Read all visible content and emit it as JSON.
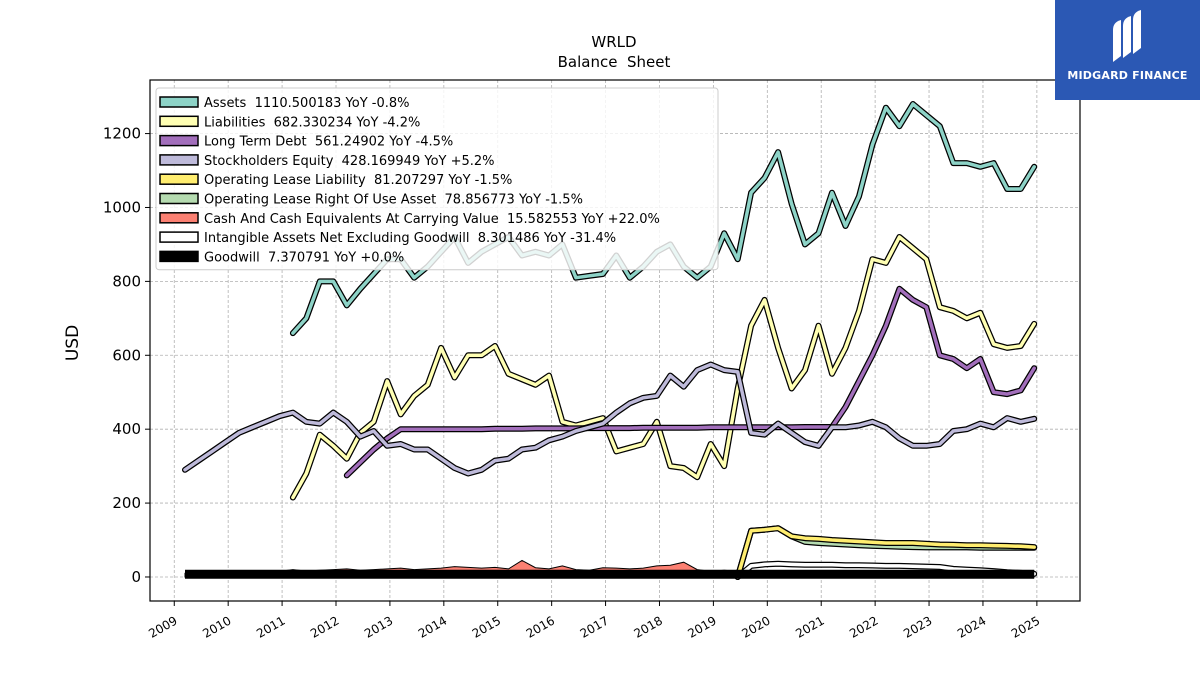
{
  "brand": {
    "name": "MIDGARD FINANCE",
    "logo_icon": "midgard-logo-icon",
    "color": "#2b58b4"
  },
  "chart_data": {
    "type": "line",
    "title": "WRLD",
    "subtitle": "Balance  Sheet",
    "xlabel": "",
    "ylabel": "USD",
    "ylim": [
      -65,
      1345
    ],
    "yticks": [
      0,
      200,
      400,
      600,
      800,
      1000,
      1200
    ],
    "xlim": [
      2008.55,
      2025.8
    ],
    "xticks": [
      "2009",
      "2010",
      "2011",
      "2012",
      "2013",
      "2014",
      "2015",
      "2016",
      "2017",
      "2018",
      "2019",
      "2020",
      "2021",
      "2022",
      "2023",
      "2024",
      "2025"
    ],
    "grid": true,
    "legend_position": "top-left",
    "series": [
      {
        "name": "Assets  1110.500183 YoY -0.8%",
        "color": "#8dd3c7",
        "style": "line",
        "x": [
          2011.2,
          2011.45,
          2011.7,
          2011.95,
          2012.2,
          2012.45,
          2012.7,
          2012.95,
          2013.2,
          2013.45,
          2013.7,
          2013.95,
          2014.2,
          2014.45,
          2014.7,
          2014.95,
          2015.2,
          2015.45,
          2015.7,
          2015.95,
          2016.2,
          2016.45,
          2016.7,
          2016.95,
          2017.2,
          2017.45,
          2017.7,
          2017.95,
          2018.2,
          2018.45,
          2018.7,
          2018.95,
          2019.2,
          2019.45,
          2019.7,
          2019.95,
          2020.2,
          2020.45,
          2020.7,
          2020.95,
          2021.2,
          2021.45,
          2021.7,
          2021.95,
          2022.2,
          2022.45,
          2022.7,
          2022.95,
          2023.2,
          2023.45,
          2023.7,
          2023.95,
          2024.2,
          2024.45,
          2024.7,
          2024.95
        ],
        "values": [
          660,
          700,
          800,
          800,
          735,
          780,
          820,
          860,
          860,
          810,
          840,
          880,
          920,
          850,
          880,
          900,
          920,
          870,
          880,
          870,
          900,
          810,
          815,
          820,
          870,
          810,
          840,
          880,
          900,
          840,
          810,
          840,
          930,
          860,
          1040,
          1080,
          1150,
          1010,
          900,
          930,
          1040,
          950,
          1030,
          1170,
          1270,
          1220,
          1280,
          1250,
          1220,
          1120,
          1120,
          1110,
          1120,
          1050,
          1050,
          1110
        ]
      },
      {
        "name": "Liabilities  682.330234 YoY -4.2%",
        "color": "#ffffb3",
        "style": "line",
        "x": [
          2011.2,
          2011.45,
          2011.7,
          2011.95,
          2012.2,
          2012.45,
          2012.7,
          2012.95,
          2013.2,
          2013.45,
          2013.7,
          2013.95,
          2014.2,
          2014.45,
          2014.7,
          2014.95,
          2015.2,
          2015.45,
          2015.7,
          2015.95,
          2016.2,
          2016.45,
          2016.7,
          2016.95,
          2017.2,
          2017.45,
          2017.7,
          2017.95,
          2018.2,
          2018.45,
          2018.7,
          2018.95,
          2019.2,
          2019.45,
          2019.7,
          2019.95,
          2020.2,
          2020.45,
          2020.7,
          2020.95,
          2021.2,
          2021.45,
          2021.7,
          2021.95,
          2022.2,
          2022.45,
          2022.7,
          2022.95,
          2023.2,
          2023.45,
          2023.7,
          2023.95,
          2024.2,
          2024.45,
          2024.7,
          2024.95
        ],
        "values": [
          215,
          280,
          385,
          355,
          320,
          390,
          420,
          530,
          440,
          490,
          520,
          620,
          540,
          600,
          600,
          625,
          550,
          535,
          520,
          545,
          420,
          410,
          420,
          430,
          340,
          350,
          360,
          420,
          300,
          295,
          270,
          360,
          300,
          510,
          680,
          750,
          620,
          510,
          560,
          680,
          550,
          620,
          720,
          860,
          850,
          920,
          890,
          860,
          730,
          720,
          700,
          715,
          630,
          620,
          625,
          685
        ]
      },
      {
        "name": "Long Term Debt  561.24902 YoY -4.5%",
        "color": "#bebada",
        "style": "line",
        "override_color": "#a26ebb",
        "x": [
          2012.2,
          2012.45,
          2012.7,
          2012.95,
          2013.2,
          2013.45,
          2013.7,
          2013.95,
          2014.2,
          2014.45,
          2014.7,
          2014.95,
          2015.2,
          2015.45,
          2015.7,
          2015.95,
          2016.2,
          2016.45,
          2016.7,
          2016.95,
          2017.2,
          2017.45,
          2017.7,
          2017.95,
          2018.2,
          2018.45,
          2018.7,
          2018.95,
          2019.2,
          2019.45,
          2019.7,
          2019.95,
          2020.2,
          2020.45,
          2020.7,
          2020.95,
          2021.2,
          2021.45,
          2021.7,
          2021.95,
          2022.2,
          2022.45,
          2022.7,
          2022.95,
          2023.2,
          2023.45,
          2023.7,
          2023.95,
          2024.2,
          2024.45,
          2024.7,
          2024.95
        ],
        "values": [
          275,
          310,
          345,
          375,
          400,
          400,
          400,
          400,
          400,
          400,
          400,
          401,
          401,
          401,
          402,
          402,
          402,
          402,
          403,
          403,
          403,
          403,
          404,
          404,
          404,
          404,
          404,
          405,
          405,
          405,
          405,
          405,
          405,
          405,
          406,
          406,
          406,
          460,
          530,
          600,
          680,
          780,
          750,
          730,
          600,
          590,
          565,
          590,
          500,
          495,
          505,
          565
        ]
      },
      {
        "name": "Stockholders Equity  428.169949 YoY +5.2%",
        "color": "#bebada",
        "style": "line",
        "x": [
          2009.2,
          2009.45,
          2009.7,
          2009.95,
          2010.2,
          2010.45,
          2010.7,
          2010.95,
          2011.2,
          2011.45,
          2011.7,
          2011.95,
          2012.2,
          2012.45,
          2012.7,
          2012.95,
          2013.2,
          2013.45,
          2013.7,
          2013.95,
          2014.2,
          2014.45,
          2014.7,
          2014.95,
          2015.2,
          2015.45,
          2015.7,
          2015.95,
          2016.2,
          2016.45,
          2016.7,
          2016.95,
          2017.2,
          2017.45,
          2017.7,
          2017.95,
          2018.2,
          2018.45,
          2018.7,
          2018.95,
          2019.2,
          2019.45,
          2019.7,
          2019.95,
          2020.2,
          2020.45,
          2020.7,
          2020.95,
          2021.2,
          2021.45,
          2021.7,
          2021.95,
          2022.2,
          2022.45,
          2022.7,
          2022.95,
          2023.2,
          2023.45,
          2023.7,
          2023.95,
          2024.2,
          2024.45,
          2024.7,
          2024.95
        ],
        "values": [
          290,
          315,
          340,
          365,
          390,
          405,
          420,
          435,
          445,
          420,
          415,
          445,
          420,
          380,
          395,
          355,
          360,
          345,
          345,
          320,
          295,
          280,
          290,
          315,
          320,
          345,
          350,
          370,
          380,
          395,
          405,
          415,
          445,
          470,
          485,
          490,
          545,
          515,
          560,
          575,
          560,
          555,
          390,
          385,
          415,
          390,
          365,
          355,
          405,
          405,
          410,
          420,
          405,
          375,
          355,
          355,
          360,
          395,
          400,
          415,
          405,
          430,
          420,
          428
        ]
      },
      {
        "name": "Operating Lease Liability  81.207297 YoY -1.5%",
        "color": "#ffed6f",
        "style": "line",
        "x": [
          2019.45,
          2019.7,
          2019.95,
          2020.2,
          2020.45,
          2020.7,
          2020.95,
          2021.2,
          2021.45,
          2021.7,
          2021.95,
          2022.2,
          2022.45,
          2022.7,
          2022.95,
          2023.2,
          2023.45,
          2023.7,
          2023.95,
          2024.2,
          2024.45,
          2024.7,
          2024.95
        ],
        "values": [
          0,
          125,
          128,
          132,
          110,
          105,
          103,
          100,
          98,
          96,
          94,
          92,
          92,
          92,
          90,
          88,
          87,
          86,
          86,
          85,
          84,
          83,
          81
        ]
      },
      {
        "name": "Operating Lease Right Of Use Asset  78.856773 YoY -1.5%",
        "color": "#b5dbb0",
        "style": "line",
        "x": [
          2019.45,
          2019.7,
          2019.95,
          2020.2,
          2020.45,
          2020.7,
          2020.95,
          2021.2,
          2021.45,
          2021.7,
          2021.95,
          2022.2,
          2022.45,
          2022.7,
          2022.95,
          2023.2,
          2023.45,
          2023.7,
          2023.95,
          2024.2,
          2024.45,
          2024.7,
          2024.95
        ],
        "values": [
          0,
          125,
          128,
          132,
          110,
          95,
          92,
          90,
          88,
          86,
          84,
          83,
          82,
          81,
          80,
          80,
          80,
          80,
          79,
          79,
          79,
          79,
          79
        ]
      },
      {
        "name": "Cash And Cash Equivalents At Carrying Value  15.582553 YoY +22.0%",
        "color": "#fb8072",
        "style": "area",
        "x": [
          2009.2,
          2009.45,
          2009.7,
          2009.95,
          2010.2,
          2010.45,
          2010.7,
          2010.95,
          2011.2,
          2011.45,
          2011.7,
          2011.95,
          2012.2,
          2012.45,
          2012.7,
          2012.95,
          2013.2,
          2013.45,
          2013.7,
          2013.95,
          2014.2,
          2014.45,
          2014.7,
          2014.95,
          2015.2,
          2015.45,
          2015.7,
          2015.95,
          2016.2,
          2016.45,
          2016.7,
          2016.95,
          2017.2,
          2017.45,
          2017.7,
          2017.95,
          2018.2,
          2018.45,
          2018.7,
          2018.95,
          2019.2,
          2019.45,
          2019.7,
          2019.95,
          2020.2,
          2020.45,
          2020.7,
          2020.95,
          2021.2,
          2021.45,
          2021.7,
          2021.95,
          2022.2,
          2022.45,
          2022.7,
          2022.95,
          2023.2,
          2023.45,
          2023.7,
          2023.95,
          2024.2,
          2024.45,
          2024.7,
          2024.95
        ],
        "values": [
          10,
          12,
          11,
          10,
          12,
          14,
          16,
          15,
          20,
          16,
          18,
          20,
          22,
          18,
          20,
          22,
          24,
          20,
          22,
          24,
          28,
          26,
          24,
          26,
          22,
          45,
          25,
          22,
          30,
          20,
          18,
          25,
          24,
          22,
          24,
          30,
          32,
          40,
          20,
          15,
          18,
          15,
          14,
          14,
          14,
          15,
          16,
          14,
          15,
          17,
          15,
          14,
          15,
          16,
          14,
          15,
          17,
          17,
          16,
          17,
          15,
          14,
          14,
          15.6
        ]
      },
      {
        "name": "Intangible Assets Net Excluding Goodwill  8.301486 YoY -31.4%",
        "color": "#ffffff",
        "style": "line",
        "x": [
          2019.45,
          2019.7,
          2019.95,
          2020.2,
          2020.45,
          2020.7,
          2020.95,
          2021.2,
          2021.45,
          2021.7,
          2021.95,
          2022.2,
          2022.45,
          2022.7,
          2022.95,
          2023.2,
          2023.45,
          2023.7,
          2023.95,
          2024.2,
          2024.45,
          2024.7,
          2024.95
        ],
        "values": [
          0,
          30,
          34,
          36,
          34,
          33,
          33,
          33,
          32,
          32,
          31,
          30,
          30,
          29,
          28,
          27,
          22,
          20,
          18,
          16,
          13,
          11,
          8.3
        ]
      },
      {
        "name": "Goodwill  7.370791 YoY +0.0%",
        "color": "#000000",
        "style": "line",
        "x": [
          2009.2,
          2010.2,
          2011.2,
          2012.2,
          2013.2,
          2014.2,
          2015.2,
          2016.2,
          2017.2,
          2018.2,
          2019.2,
          2020.2,
          2021.2,
          2022.2,
          2023.2,
          2024.2,
          2024.95
        ],
        "values": [
          7.4,
          7.4,
          7.4,
          7.4,
          7.4,
          7.4,
          7.4,
          7.4,
          7.4,
          7.4,
          7.4,
          7.4,
          7.4,
          7.4,
          7.4,
          7.4,
          7.4
        ]
      }
    ]
  }
}
